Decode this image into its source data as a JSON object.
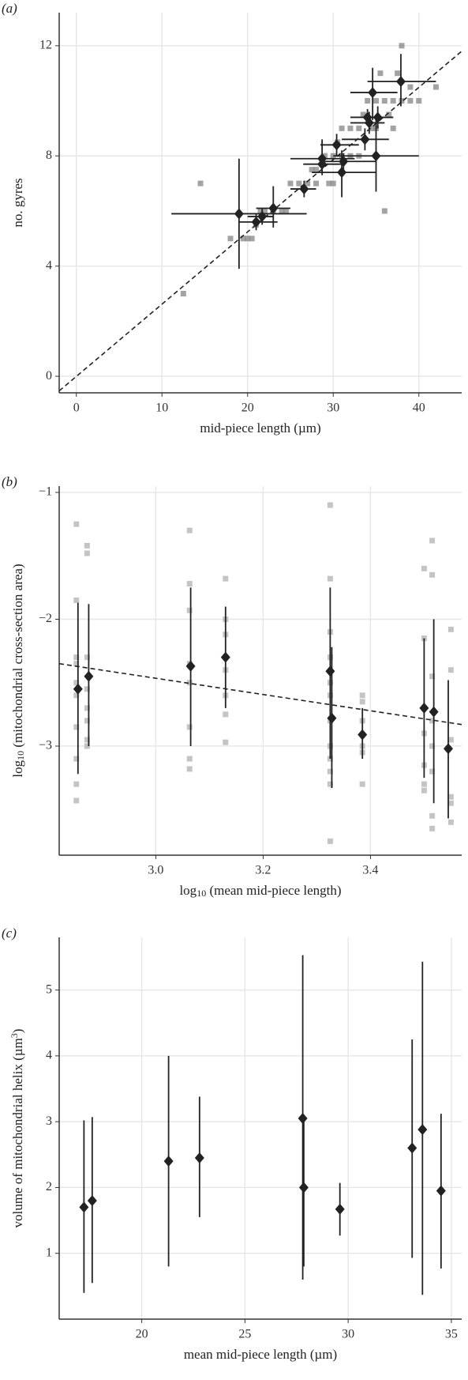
{
  "chart_data": [
    {
      "type": "scatter",
      "panel_label": "(a)",
      "x_label": {
        "text": [
          "mid-piece length (µm)"
        ]
      },
      "y_label": {
        "text": [
          "no. gyres"
        ]
      },
      "xlim": [
        -2,
        45
      ],
      "ylim": [
        -0.6,
        13.2
      ],
      "xticks": [
        0,
        10,
        20,
        30,
        40
      ],
      "yticks": [
        0,
        4,
        8,
        12
      ],
      "grid": true,
      "points": {
        "color": "#8c8c8c",
        "x": [
          12.5,
          14.5,
          18,
          19.5,
          20,
          20.5,
          21,
          21.5,
          22,
          23,
          24,
          24.5,
          25,
          26,
          27,
          28,
          28,
          29,
          29.5,
          30,
          30,
          31,
          32,
          32,
          33,
          33,
          33.5,
          34,
          34.5,
          35,
          35,
          35.5,
          36,
          36,
          36.5,
          37,
          37.5,
          38,
          38,
          39,
          39,
          40,
          42,
          37,
          31,
          30.5,
          27.5
        ],
        "y": [
          3,
          7,
          5,
          5,
          5,
          5,
          5.5,
          6,
          6,
          6,
          6,
          6,
          7,
          7,
          7,
          7,
          7.5,
          8,
          7,
          7,
          8,
          8,
          8,
          9,
          8,
          9,
          9.5,
          10,
          9,
          9,
          10,
          11,
          6,
          10,
          9.5,
          10,
          11,
          10,
          12,
          10,
          10.5,
          10,
          10.5,
          9,
          9,
          8.5,
          7.5
        ]
      },
      "means": {
        "color": "#222",
        "x": [
          19.0,
          21.0,
          21.7,
          23,
          26.6,
          28.7,
          28.7,
          30.4,
          31.2,
          31,
          33.7,
          34.2,
          34,
          34.6,
          35.2,
          35,
          37.9
        ],
        "y": [
          5.9,
          5.6,
          5.8,
          6.1,
          6.8,
          7.9,
          7.7,
          8.4,
          7.8,
          7.4,
          8.6,
          9.2,
          9.4,
          10.3,
          9.4,
          8,
          10.7
        ],
        "x_lower": [
          11.1,
          19,
          20,
          21,
          25,
          25,
          26.5,
          28.5,
          29,
          27.5,
          31,
          32,
          32,
          32,
          33.5,
          30,
          34
        ],
        "x_upper": [
          26.9,
          23.5,
          23,
          25,
          28,
          32.5,
          31,
          33,
          35,
          35,
          36.5,
          36,
          37,
          37.5,
          37,
          40,
          42
        ],
        "lower": [
          3.9,
          5.3,
          5.5,
          5.4,
          6.5,
          7.3,
          7.4,
          8.0,
          7.5,
          6.5,
          8.2,
          8.8,
          9.1,
          9.3,
          9.0,
          6.7,
          9.8
        ],
        "upper": [
          7.9,
          5.9,
          6.1,
          6.9,
          7.1,
          8.6,
          8.0,
          8.8,
          8.1,
          8.2,
          9.0,
          9.6,
          9.7,
          11.2,
          9.8,
          9.3,
          11.7
        ]
      },
      "fit_line": {
        "x": [
          -2,
          45
        ],
        "y": [
          -0.53,
          11.8
        ]
      }
    },
    {
      "type": "scatter",
      "panel_label": "(b)",
      "x_label": {
        "text": [
          "log",
          "10",
          " (mean mid-piece length)"
        ],
        "script": "sub"
      },
      "y_label": {
        "text": [
          "log",
          "10",
          " (mitochondrial cross-section area)"
        ],
        "script": "sub"
      },
      "xlim": [
        2.82,
        3.57
      ],
      "ylim": [
        -3.86,
        -0.95
      ],
      "xticks": [
        {
          "value": 3,
          "label": "3.0"
        },
        3.2,
        3.4
      ],
      "yticks": [
        {
          "value": -1,
          "label": "−1"
        },
        {
          "value": -2,
          "label": "−2"
        },
        {
          "value": -3,
          "label": "−3"
        }
      ],
      "grid": true,
      "points": {
        "color": "#b5b5b5",
        "x": [
          2.852,
          2.852,
          2.852,
          2.852,
          2.852,
          2.852,
          2.852,
          2.852,
          2.852,
          2.852,
          2.872,
          2.872,
          2.872,
          2.872,
          2.872,
          2.872,
          2.872,
          2.872,
          3.063,
          3.063,
          3.063,
          3.063,
          3.063,
          3.063,
          3.063,
          3.063,
          3.13,
          3.13,
          3.13,
          3.13,
          3.13,
          3.13,
          3.13,
          3.13,
          3.325,
          3.325,
          3.325,
          3.325,
          3.325,
          3.325,
          3.325,
          3.325,
          3.325,
          3.325,
          3.325,
          3.325,
          3.385,
          3.385,
          3.385,
          3.385,
          3.385,
          3.385,
          3.5,
          3.5,
          3.5,
          3.5,
          3.5,
          3.5,
          3.5,
          3.515,
          3.515,
          3.515,
          3.515,
          3.515,
          3.515,
          3.515,
          3.515,
          3.55,
          3.55,
          3.55,
          3.55,
          3.55,
          3.55
        ],
        "y": [
          -1.25,
          -1.85,
          -2.3,
          -2.6,
          -2.85,
          -3.1,
          -3.3,
          -3.43,
          -2.5,
          -2.35,
          -1.42,
          -1.48,
          -2.3,
          -2.8,
          -2.95,
          -3.0,
          -2.7,
          -2.55,
          -1.3,
          -1.72,
          -1.93,
          -2.35,
          -2.5,
          -2.85,
          -3.1,
          -3.18,
          -1.68,
          -2.0,
          -2.12,
          -2.3,
          -2.6,
          -2.75,
          -2.97,
          -2.4,
          -1.1,
          -1.68,
          -2.1,
          -2.3,
          -2.6,
          -2.8,
          -3.0,
          -3.1,
          -3.2,
          -3.3,
          -3.75,
          -2.5,
          -2.6,
          -2.65,
          -2.8,
          -3.0,
          -3.05,
          -3.3,
          -1.6,
          -2.15,
          -2.7,
          -2.9,
          -3.15,
          -3.3,
          -3.35,
          -1.38,
          -1.65,
          -2.45,
          -2.8,
          -3.0,
          -3.2,
          -3.55,
          -3.65,
          -2.08,
          -2.4,
          -2.95,
          -3.4,
          -3.45,
          -3.6
        ]
      },
      "means": {
        "color": "#222",
        "x": [
          2.855,
          2.875,
          3.065,
          3.13,
          3.325,
          3.328,
          3.385,
          3.5,
          3.518,
          3.545
        ],
        "y": [
          -2.55,
          -2.45,
          -2.37,
          -2.3,
          -2.41,
          -2.78,
          -2.91,
          -2.7,
          -2.73,
          -3.02
        ],
        "lower": [
          -3.22,
          -3.0,
          -3.0,
          -2.7,
          -3.1,
          -3.33,
          -3.1,
          -3.25,
          -3.45,
          -3.57
        ],
        "upper": [
          -1.87,
          -1.88,
          -1.75,
          -1.9,
          -1.75,
          -2.22,
          -2.7,
          -2.15,
          -2.0,
          -2.48
        ]
      },
      "fit_line": {
        "x": [
          2.82,
          3.57
        ],
        "y": [
          -2.35,
          -2.83
        ]
      }
    },
    {
      "type": "scatter",
      "panel_label": "(c)",
      "x_label": {
        "text": [
          "mean mid-piece length (µm)"
        ]
      },
      "y_label": {
        "text": [
          "volume of mitochondrial helix (µm",
          "3",
          ")"
        ],
        "script": "sup"
      },
      "xlim": [
        16,
        35.5
      ],
      "ylim": [
        0,
        5.8
      ],
      "xticks": [
        20,
        25,
        30,
        35
      ],
      "yticks": [
        1,
        2,
        3,
        4,
        5
      ],
      "grid": true,
      "means": {
        "color": "#222",
        "x": [
          17.2,
          17.6,
          21.3,
          22.8,
          27.8,
          27.85,
          29.6,
          33.1,
          33.6,
          34.5
        ],
        "y": [
          1.7,
          1.8,
          2.4,
          2.45,
          3.05,
          2.0,
          1.67,
          2.6,
          2.88,
          1.95
        ],
        "lower": [
          0.4,
          0.55,
          0.8,
          1.55,
          0.6,
          0.8,
          1.27,
          0.93,
          0.37,
          0.77
        ],
        "upper": [
          3.02,
          3.07,
          4.0,
          3.38,
          5.53,
          3.1,
          2.07,
          4.25,
          5.43,
          3.12
        ]
      }
    }
  ]
}
